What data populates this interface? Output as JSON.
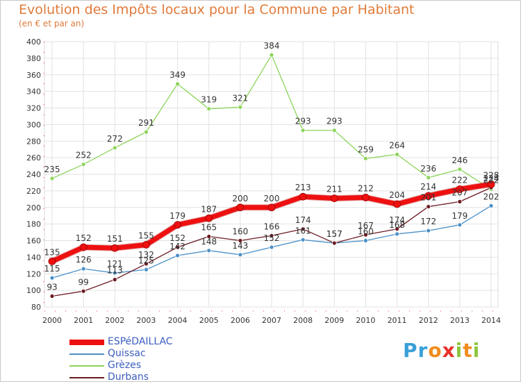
{
  "title": "Evolution des Impôts locaux pour la Commune par Habitant",
  "subtitle": "(en € et par an)",
  "brand": {
    "letters": [
      "P",
      "r",
      "o",
      "x",
      "i",
      "t",
      "i"
    ],
    "colors": [
      "#3aa0d8",
      "#3aa0d8",
      "#f08c1e",
      "#e8322a",
      "#8cc63e",
      "#f08c1e",
      "#8cc63e"
    ]
  },
  "chart_data": {
    "type": "line",
    "x": [
      2000,
      2001,
      2002,
      2003,
      2004,
      2005,
      2006,
      2007,
      2008,
      2009,
      2010,
      2011,
      2012,
      2013,
      2014
    ],
    "ylim": [
      80,
      400
    ],
    "yticks": [
      80,
      100,
      120,
      140,
      160,
      180,
      200,
      220,
      240,
      260,
      280,
      300,
      320,
      340,
      360,
      380,
      400
    ],
    "grid": true,
    "legend_position": "bottom-left",
    "series": [
      {
        "name": "Grèzes",
        "color": "#8cd45a",
        "width": 1.3,
        "values": [
          235,
          252,
          272,
          291,
          349,
          319,
          321,
          384,
          293,
          293,
          259,
          264,
          236,
          246,
          222
        ],
        "labels": [
          "235",
          "252",
          "272",
          "291",
          "349",
          "319",
          "321",
          "384",
          "293",
          "293",
          "259",
          "264",
          "236",
          "246",
          "222"
        ]
      },
      {
        "name": "Quissac",
        "color": "#4a90c8",
        "width": 1.3,
        "values": [
          115,
          126,
          121,
          125,
          142,
          148,
          143,
          152,
          161,
          157,
          160,
          168,
          172,
          179,
          202
        ],
        "labels": [
          "115",
          "126",
          "121",
          "125",
          "142",
          "148",
          "143",
          "152",
          "161",
          "157",
          "160",
          "168",
          "172",
          "179",
          "202"
        ]
      },
      {
        "name": "Durbans",
        "color": "#6b1a22",
        "width": 1.3,
        "values": [
          93,
          99,
          113,
          132,
          152,
          165,
          160,
          166,
          174,
          157,
          167,
          174,
          201,
          207,
          224
        ],
        "labels": [
          "93",
          "99",
          "113",
          "132",
          "152",
          "165",
          "160",
          "166",
          "174",
          "157",
          "167",
          "174",
          "201",
          "207",
          "224"
        ]
      },
      {
        "name": "ESPéDAILLAC",
        "color": "#ee1010",
        "width": 7,
        "values": [
          135,
          152,
          151,
          155,
          179,
          187,
          200,
          200,
          213,
          211,
          212,
          204,
          214,
          222,
          228
        ],
        "labels": [
          "135",
          "152",
          "151",
          "155",
          "179",
          "187",
          "200",
          "200",
          "213",
          "211",
          "212",
          "204",
          "214",
          "222",
          "228"
        ]
      }
    ],
    "legend_order": [
      "ESPéDAILLAC",
      "Quissac",
      "Grèzes",
      "Durbans"
    ]
  }
}
